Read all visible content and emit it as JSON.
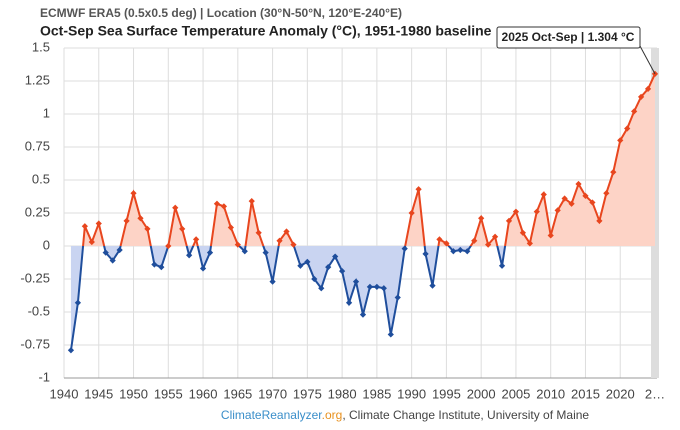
{
  "chart_data": {
    "type": "line",
    "subtitle": "ECMWF ERA5 (0.5x0.5 deg) | Location (30°N-50°N, 120°E-240°E)",
    "title": "Oct-Sep Sea Surface Temperature Anomaly (°C), 1951-1980 baseline",
    "annotation": "2025 Oct-Sep | 1.304 °C",
    "source_site": "ClimateReanalyzer",
    "source_tld": ".org",
    "source_rest": ", Climate Change Institute, University of Maine",
    "x": [
      1941,
      1942,
      1943,
      1944,
      1945,
      1946,
      1947,
      1948,
      1949,
      1950,
      1951,
      1952,
      1953,
      1954,
      1955,
      1956,
      1957,
      1958,
      1959,
      1960,
      1961,
      1962,
      1963,
      1964,
      1965,
      1966,
      1967,
      1968,
      1969,
      1970,
      1971,
      1972,
      1973,
      1974,
      1975,
      1976,
      1977,
      1978,
      1979,
      1980,
      1981,
      1982,
      1983,
      1984,
      1985,
      1986,
      1987,
      1988,
      1989,
      1990,
      1991,
      1992,
      1993,
      1994,
      1995,
      1996,
      1997,
      1998,
      1999,
      2000,
      2001,
      2002,
      2003,
      2004,
      2005,
      2006,
      2007,
      2008,
      2009,
      2010,
      2011,
      2012,
      2013,
      2014,
      2015,
      2016,
      2017,
      2018,
      2019,
      2020,
      2021,
      2022,
      2023,
      2024,
      2025
    ],
    "values": [
      -0.79,
      -0.43,
      0.15,
      0.03,
      0.17,
      -0.05,
      -0.11,
      -0.03,
      0.19,
      0.4,
      0.21,
      0.13,
      -0.14,
      -0.16,
      0.0,
      0.29,
      0.13,
      -0.07,
      0.05,
      -0.17,
      -0.05,
      0.32,
      0.3,
      0.14,
      0.01,
      -0.04,
      0.34,
      0.1,
      -0.05,
      -0.27,
      0.04,
      0.11,
      0.01,
      -0.15,
      -0.12,
      -0.25,
      -0.32,
      -0.16,
      -0.08,
      -0.19,
      -0.43,
      -0.27,
      -0.52,
      -0.31,
      -0.31,
      -0.32,
      -0.67,
      -0.39,
      -0.02,
      0.25,
      0.43,
      -0.06,
      -0.3,
      0.05,
      0.02,
      -0.04,
      -0.03,
      -0.04,
      0.04,
      0.21,
      0.01,
      0.07,
      -0.15,
      0.19,
      0.26,
      0.1,
      0.02,
      0.26,
      0.39,
      0.08,
      0.27,
      0.36,
      0.32,
      0.47,
      0.38,
      0.33,
      0.19,
      0.4,
      0.56,
      0.8,
      0.89,
      1.02,
      1.13,
      1.19,
      1.304
    ],
    "color_above": "#e8461e",
    "color_below": "#1f4e9c",
    "fill_above": "#fdd3c6",
    "fill_below": "#c9d4f1",
    "xlim": [
      1940,
      2025
    ],
    "ylim": [
      -1,
      1.5
    ],
    "xticks": [
      1940,
      1945,
      1950,
      1955,
      1960,
      1965,
      1970,
      1975,
      1980,
      1985,
      1990,
      1995,
      2000,
      2005,
      2010,
      2015,
      2020,
      {
        "value": 2025,
        "label": "2…"
      }
    ],
    "yticks": [
      1.5,
      1.25,
      1,
      0.75,
      0.5,
      0.25,
      0,
      -0.25,
      -0.5,
      -0.75,
      -1
    ],
    "grid": true
  }
}
